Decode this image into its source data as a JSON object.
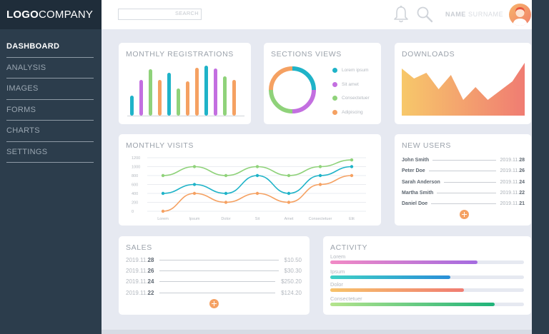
{
  "app": {
    "logo_bold": "LOGO",
    "logo_light": "COMPANY"
  },
  "sidebar": {
    "items": [
      {
        "label": "DASHBOARD",
        "active": true
      },
      {
        "label": "ANALYSIS",
        "active": false
      },
      {
        "label": "IMAGES",
        "active": false
      },
      {
        "label": "FORMS",
        "active": false
      },
      {
        "label": "CHARTS",
        "active": false
      },
      {
        "label": "SETTINGS",
        "active": false
      }
    ]
  },
  "header": {
    "search_button": "SEARCH",
    "user_name": "NAME",
    "user_surname": "SURNAME",
    "icons": [
      "bell-icon",
      "search-icon",
      "avatar"
    ]
  },
  "monthly_registrations": {
    "title": "MONTHLY REGISTRATIONS",
    "chart_data": {
      "type": "bar",
      "values": [
        28,
        50,
        65,
        50,
        60,
        38,
        48,
        67,
        70,
        66,
        55,
        50
      ],
      "colors": [
        "#1fb3c8",
        "#c36fe0",
        "#8fd27a",
        "#f5a162",
        "#1fb3c8",
        "#8fd27a",
        "#f5a162",
        "#f5a162",
        "#1fb3c8",
        "#c36fe0",
        "#8fd27a",
        "#f5a162"
      ],
      "ylim": [
        0,
        72
      ]
    }
  },
  "sections_views": {
    "title": "SECTIONS VIEWS",
    "legend": [
      {
        "label": "Lorem ipsum",
        "color": "#1fb3c8"
      },
      {
        "label": "Sit amet",
        "color": "#c36fe0"
      },
      {
        "label": "Consectetuer",
        "color": "#8fd27a"
      },
      {
        "label": "Adipiscing",
        "color": "#f5a162"
      }
    ],
    "chart_data": {
      "type": "pie",
      "labels": [
        "Lorem ipsum",
        "Sit amet",
        "Consectetuer",
        "Adipiscing"
      ],
      "values": [
        25,
        25,
        25,
        25
      ],
      "colors": [
        "#1fb3c8",
        "#c36fe0",
        "#8fd27a",
        "#f5a162"
      ]
    }
  },
  "downloads": {
    "title": "DOWNLOADS",
    "chart_data": {
      "type": "area",
      "values": [
        66,
        52,
        60,
        37,
        57,
        22,
        40,
        22,
        35,
        48,
        74
      ],
      "colors": [
        "#f7c86a",
        "#f07c72"
      ],
      "ylim": [
        0,
        80
      ]
    }
  },
  "monthly_visits": {
    "title": "MONTHLY VISITS",
    "chart_data": {
      "type": "line",
      "categories": [
        "Lorem",
        "Ipsum",
        "Dolor",
        "Sit",
        "Amet",
        "Consectetuer",
        "Elit"
      ],
      "yticks": [
        0,
        200,
        400,
        600,
        800,
        1000,
        1200
      ],
      "ylim": [
        0,
        1200
      ],
      "grid": true,
      "series": [
        {
          "color": "#8fd27a",
          "values": [
            800,
            1000,
            800,
            1000,
            800,
            1000,
            1150
          ]
        },
        {
          "color": "#1fb3c8",
          "values": [
            400,
            600,
            400,
            800,
            400,
            800,
            1000
          ]
        },
        {
          "color": "#f5a162",
          "values": [
            0,
            400,
            200,
            400,
            200,
            600,
            800
          ]
        }
      ]
    }
  },
  "new_users": {
    "title": "NEW USERS",
    "rows": [
      {
        "name": "John Smith",
        "date": "2019.11.",
        "day": "28"
      },
      {
        "name": "Peter Doe",
        "date": "2019.11.",
        "day": "26"
      },
      {
        "name": "Sarah Anderson",
        "date": "2019.11.",
        "day": "24"
      },
      {
        "name": "Martha Smith",
        "date": "2019.11.",
        "day": "22"
      },
      {
        "name": "Daniel Doe",
        "date": "2019.11.",
        "day": "21"
      }
    ]
  },
  "sales": {
    "title": "SALES",
    "rows": [
      {
        "date": "2019.11.",
        "day": "28",
        "amount": "$10.50"
      },
      {
        "date": "2019.11.",
        "day": "26",
        "amount": "$30.30"
      },
      {
        "date": "2019.11.",
        "day": "24",
        "amount": "$250.20"
      },
      {
        "date": "2019.11.",
        "day": "22",
        "amount": "$124.20"
      }
    ]
  },
  "activity": {
    "title": "ACTIVITY",
    "items": [
      {
        "label": "Lorem",
        "percent": 76,
        "gradient": [
          "#f28ac5",
          "#a46be0"
        ]
      },
      {
        "label": "Ipsum",
        "percent": 62,
        "gradient": [
          "#3fd0c5",
          "#2a8fd8"
        ]
      },
      {
        "label": "Dolor",
        "percent": 69,
        "gradient": [
          "#f7c36a",
          "#f07c72"
        ]
      },
      {
        "label": "Consectetuer",
        "percent": 85,
        "gradient": [
          "#b5e48c",
          "#1fb37a"
        ]
      }
    ]
  }
}
